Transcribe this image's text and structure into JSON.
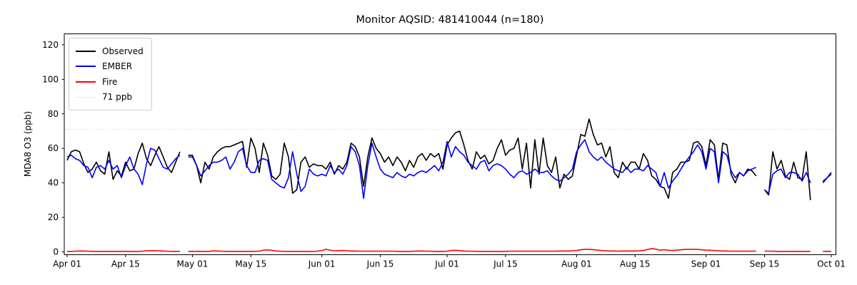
{
  "figure": {
    "title": "Monitor AQSID: 481410044 (n=180)",
    "ylabel": "MDA8 O3 (ppb)"
  },
  "legend": {
    "items": [
      {
        "label": "Observed",
        "color": "#000000",
        "style": "solid"
      },
      {
        "label": "EMBER",
        "color": "#0000ff",
        "style": "solid"
      },
      {
        "label": "Fire",
        "color": "#ff0000",
        "style": "solid"
      },
      {
        "label": "71 ppb",
        "color": "#d3d3d3",
        "style": "dotted"
      }
    ]
  },
  "chart_data": {
    "type": "line",
    "title": "Monitor AQSID: 481410044 (n=180)",
    "xlabel": "",
    "ylabel": "MDA8 O3 (ppb)",
    "n_points": 180,
    "x_start": "Apr 01",
    "x_end": "Oct 01",
    "n_days": 184,
    "x_tick_labels": [
      "Apr 01",
      "Apr 15",
      "May 01",
      "May 15",
      "Jun 01",
      "Jun 15",
      "Jul 01",
      "Jul 15",
      "Aug 01",
      "Aug 15",
      "Sep 01",
      "Sep 15",
      "Oct 01"
    ],
    "x_tick_days": [
      0,
      14,
      30,
      44,
      61,
      75,
      91,
      105,
      122,
      136,
      153,
      167,
      183
    ],
    "y_ticks": [
      0,
      20,
      40,
      60,
      80,
      100,
      120
    ],
    "ylim": [
      -2,
      126
    ],
    "grid": false,
    "legend_position": "upper left",
    "threshold": {
      "label": "71 ppb",
      "value": 71,
      "color": "#d3d3d3",
      "style": "dotted"
    },
    "series": [
      {
        "name": "Observed",
        "color": "#000000",
        "values": [
          53,
          58,
          59,
          58,
          51,
          46,
          48,
          52,
          47,
          45,
          58,
          42,
          47,
          44,
          52,
          47,
          48,
          57,
          63,
          54,
          50,
          56,
          61,
          55,
          49,
          46,
          52,
          58,
          null,
          56,
          56,
          50,
          40,
          52,
          48,
          55,
          58,
          60,
          61,
          61,
          62,
          63,
          64,
          49,
          66,
          60,
          46,
          63,
          56,
          44,
          42,
          45,
          63,
          55,
          34,
          36,
          52,
          55,
          49,
          51,
          50,
          50,
          48,
          52,
          45,
          50,
          48,
          52,
          63,
          61,
          55,
          38,
          55,
          66,
          60,
          57,
          52,
          55,
          50,
          55,
          52,
          47,
          53,
          49,
          55,
          57,
          53,
          57,
          55,
          57,
          48,
          62,
          66,
          69,
          70,
          62,
          53,
          48,
          58,
          54,
          56,
          51,
          53,
          60,
          65,
          56,
          59,
          60,
          66,
          48,
          63,
          37,
          65,
          45,
          66,
          50,
          46,
          55,
          37,
          45,
          42,
          44,
          56,
          68,
          67,
          77,
          68,
          62,
          63,
          55,
          61,
          46,
          43,
          52,
          48,
          52,
          52,
          48,
          57,
          53,
          44,
          42,
          38,
          37,
          31,
          46,
          48,
          52,
          52,
          53,
          63,
          64,
          61,
          50,
          65,
          62,
          42,
          63,
          62,
          45,
          40,
          46,
          44,
          48,
          47,
          44,
          null,
          36,
          33,
          58,
          48,
          53,
          44,
          42,
          52,
          43,
          42,
          58,
          30,
          null,
          null,
          40,
          43,
          46
        ]
      },
      {
        "name": "EMBER",
        "color": "#0000ff",
        "values": [
          55,
          56,
          54,
          53,
          50,
          49,
          43,
          49,
          50,
          48,
          53,
          48,
          50,
          43,
          50,
          55,
          48,
          45,
          39,
          51,
          60,
          59,
          54,
          49,
          48,
          51,
          54,
          56,
          null,
          55,
          55,
          50,
          44,
          47,
          50,
          52,
          52,
          53,
          55,
          48,
          52,
          58,
          60,
          50,
          46,
          46,
          53,
          54,
          53,
          42,
          40,
          38,
          37,
          43,
          58,
          45,
          35,
          38,
          48,
          45,
          44,
          45,
          44,
          50,
          46,
          48,
          45,
          50,
          61,
          58,
          50,
          31,
          50,
          63,
          55,
          48,
          45,
          44,
          43,
          46,
          44,
          43,
          45,
          44,
          46,
          47,
          46,
          48,
          50,
          47,
          52,
          64,
          55,
          61,
          58,
          56,
          52,
          50,
          48,
          52,
          53,
          47,
          50,
          51,
          50,
          48,
          45,
          43,
          46,
          47,
          45,
          46,
          48,
          46,
          46,
          47,
          44,
          42,
          41,
          43,
          45,
          48,
          58,
          62,
          65,
          58,
          55,
          53,
          55,
          52,
          50,
          48,
          47,
          46,
          49,
          46,
          48,
          48,
          47,
          50,
          48,
          46,
          38,
          46,
          37,
          41,
          44,
          48,
          52,
          55,
          58,
          62,
          58,
          48,
          60,
          58,
          40,
          58,
          56,
          47,
          43,
          46,
          44,
          47,
          48,
          49,
          null,
          36,
          34,
          45,
          47,
          48,
          43,
          46,
          46,
          45,
          41,
          46,
          40,
          null,
          null,
          41,
          43,
          45
        ]
      },
      {
        "name": "Fire",
        "color": "#ff0000",
        "values": [
          0.3,
          0.3,
          0.4,
          0.5,
          0.5,
          0.4,
          0.3,
          0.3,
          0.3,
          0.3,
          0.3,
          0.3,
          0.3,
          0.3,
          0.3,
          0.3,
          0.3,
          0.3,
          0.4,
          0.6,
          0.7,
          0.7,
          0.6,
          0.5,
          0.4,
          0.3,
          0.3,
          0.3,
          null,
          0.3,
          0.3,
          0.3,
          0.3,
          0.3,
          0.3,
          0.6,
          0.5,
          0.4,
          0.3,
          0.3,
          0.3,
          0.3,
          0.3,
          0.3,
          0.3,
          0.3,
          0.4,
          1.0,
          1.1,
          0.9,
          0.5,
          0.4,
          0.3,
          0.3,
          0.3,
          0.3,
          0.3,
          0.3,
          0.3,
          0.3,
          0.4,
          0.8,
          1.5,
          1.0,
          0.6,
          0.7,
          0.8,
          0.6,
          0.5,
          0.5,
          0.4,
          0.4,
          0.4,
          0.4,
          0.4,
          0.4,
          0.4,
          0.4,
          0.4,
          0.3,
          0.3,
          0.3,
          0.3,
          0.4,
          0.5,
          0.5,
          0.4,
          0.4,
          0.3,
          0.3,
          0.3,
          0.4,
          0.8,
          0.9,
          0.7,
          0.5,
          0.4,
          0.4,
          0.3,
          0.3,
          0.3,
          0.3,
          0.3,
          0.3,
          0.3,
          0.3,
          0.4,
          0.4,
          0.4,
          0.4,
          0.4,
          0.4,
          0.4,
          0.4,
          0.4,
          0.4,
          0.4,
          0.4,
          0.5,
          0.5,
          0.5,
          0.6,
          0.8,
          1.2,
          1.5,
          1.5,
          1.3,
          1.0,
          0.8,
          0.6,
          0.5,
          0.5,
          0.4,
          0.5,
          0.5,
          0.5,
          0.5,
          0.6,
          0.8,
          1.4,
          1.8,
          1.6,
          1.0,
          1.3,
          0.9,
          0.8,
          1.0,
          1.2,
          1.4,
          1.5,
          1.5,
          1.4,
          1.2,
          1.0,
          0.9,
          0.8,
          0.6,
          0.5,
          0.5,
          0.4,
          0.4,
          0.4,
          0.4,
          0.4,
          0.4,
          0.4,
          null,
          0.4,
          0.4,
          0.4,
          0.3,
          0.3,
          0.3,
          0.3,
          0.3,
          0.3,
          0.3,
          0.3,
          0.3,
          null,
          null,
          0.3,
          0.3,
          0.3
        ]
      }
    ]
  }
}
